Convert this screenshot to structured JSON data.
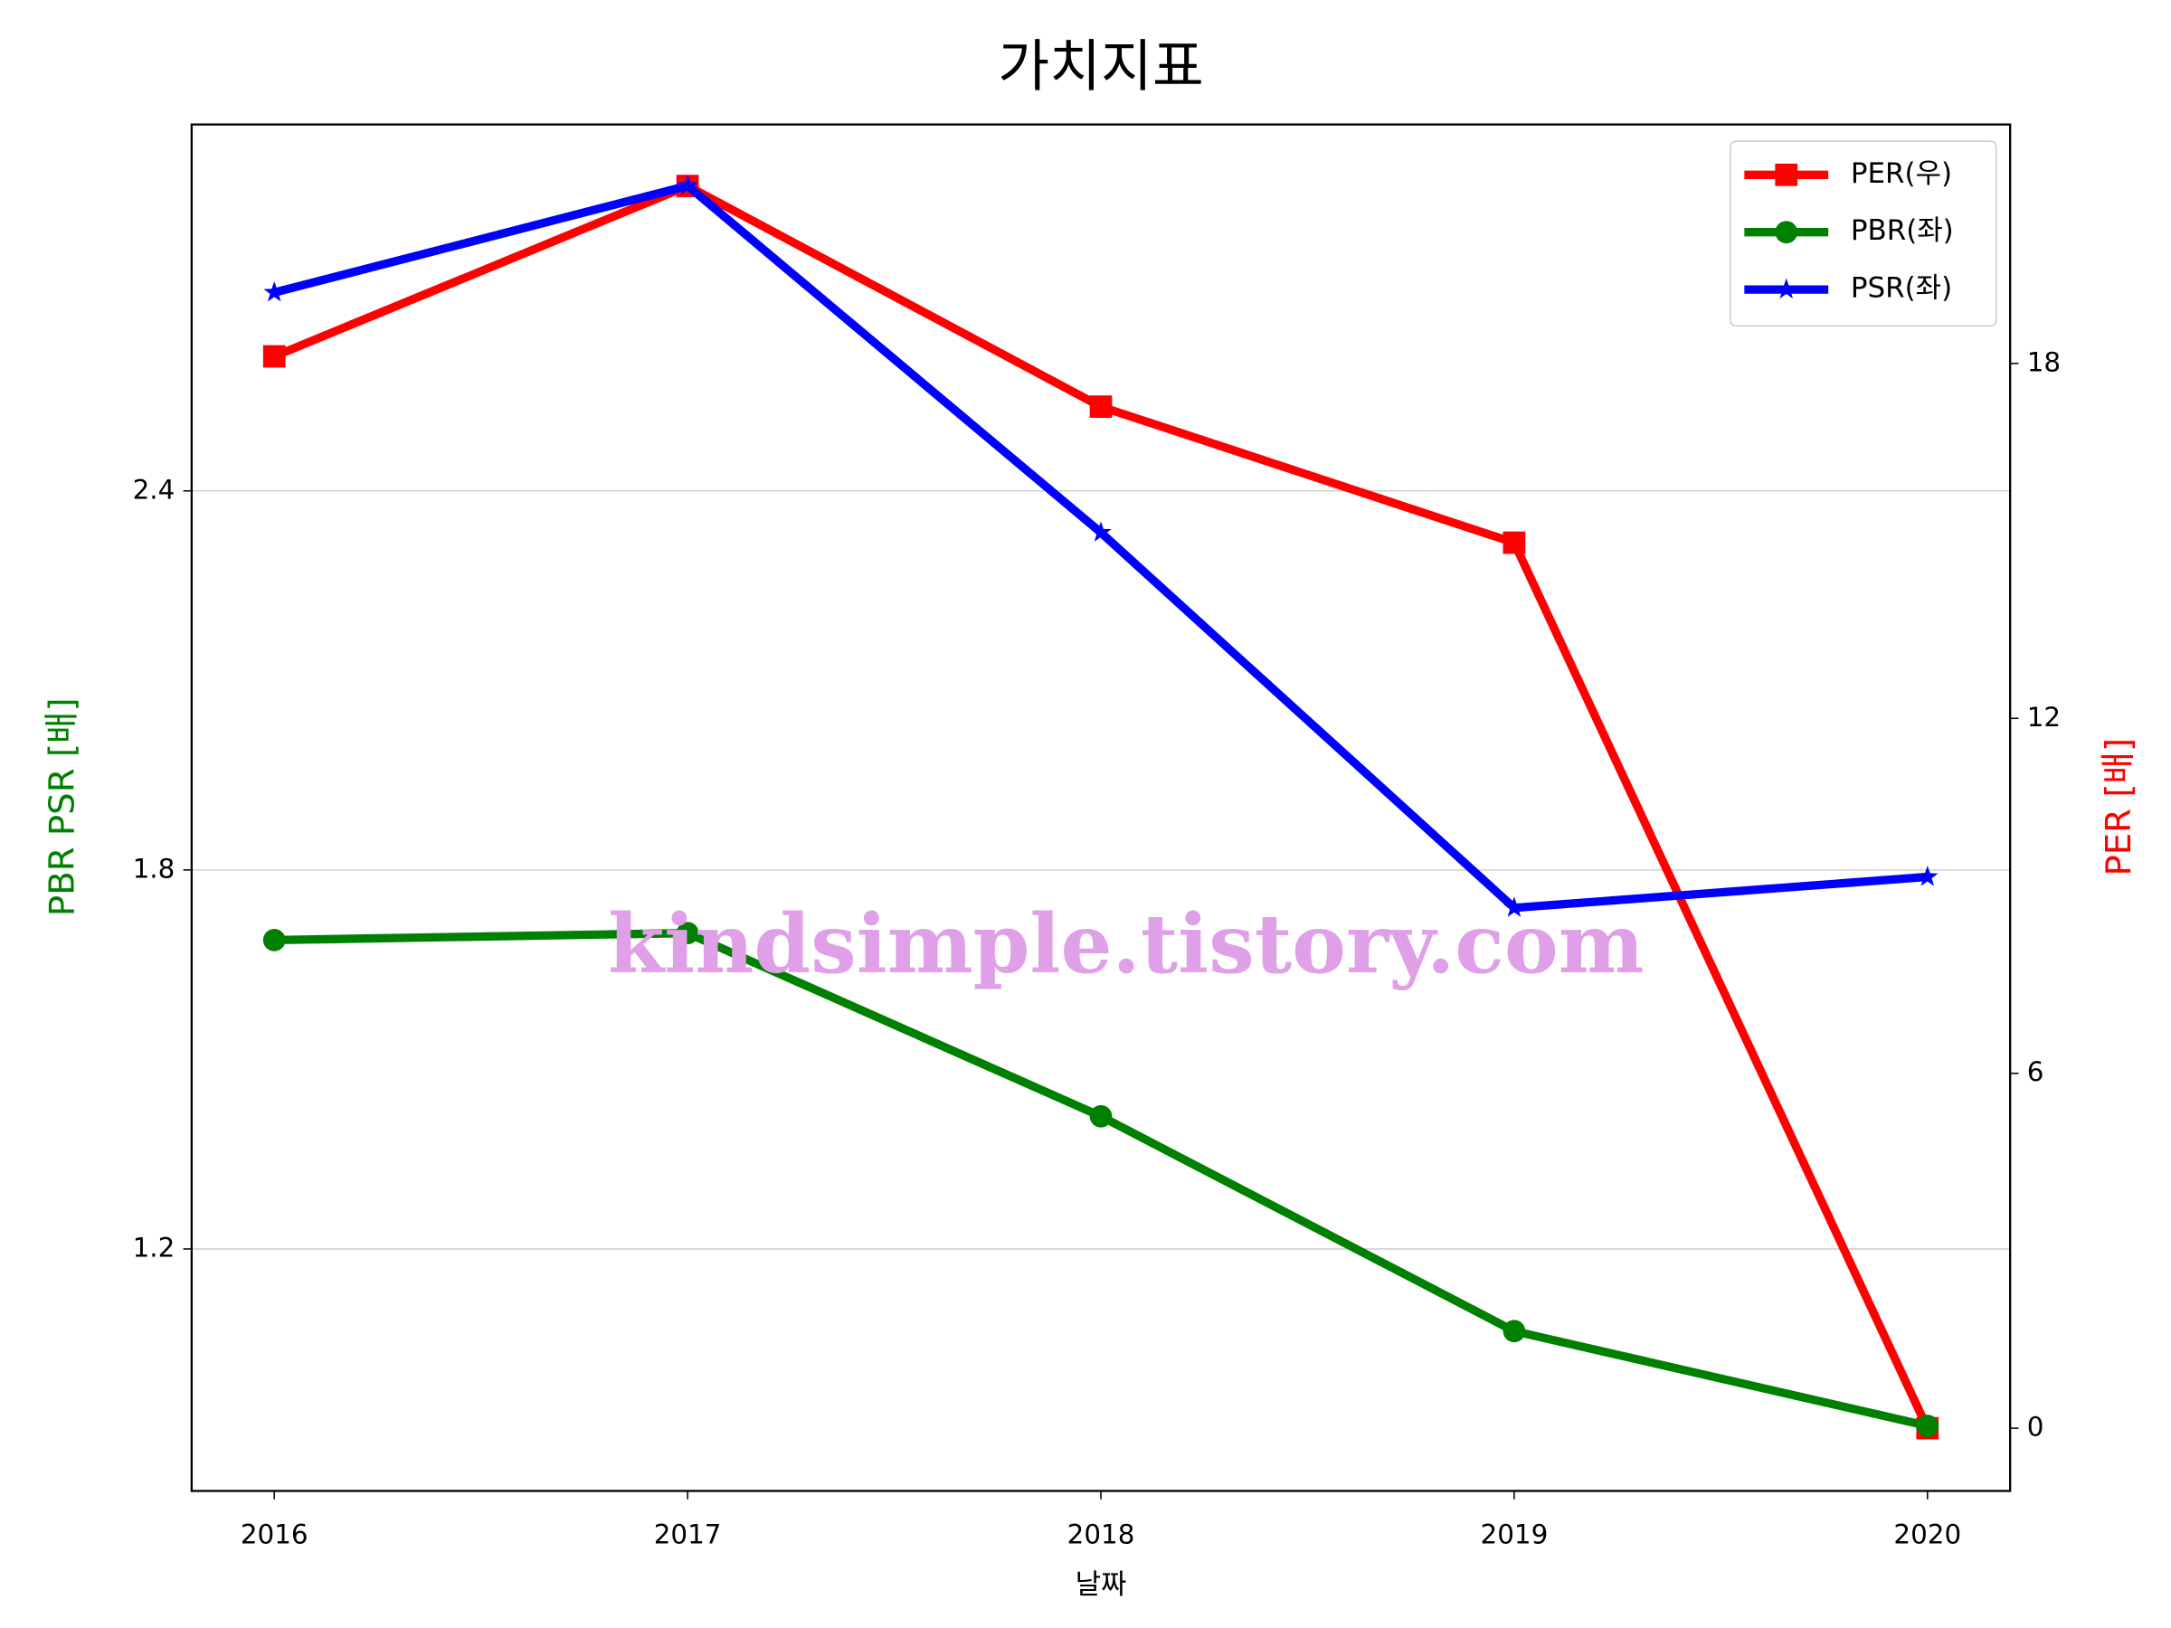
{
  "chart_data": {
    "type": "line",
    "title": "가치지표",
    "x_label": "날짜",
    "y_label": "PBR PSR [배]",
    "y2_label": "PER [배]",
    "annotation": "kindsimple.tistory.com",
    "x": [
      2016,
      2017,
      2018,
      2019,
      2020
    ],
    "xlim": [
      2015.8,
      2020.2
    ],
    "xticks": [
      2016,
      2017,
      2018,
      2019,
      2020
    ],
    "ylim": [
      0.817,
      2.98
    ],
    "yticks": [
      1.2,
      1.8,
      2.4
    ],
    "y2lim": [
      -1.06,
      22.04
    ],
    "y2ticks": [
      0,
      6,
      12,
      18
    ],
    "grid": true,
    "legend": "upper right",
    "series": [
      {
        "name": "PER(우)",
        "color": "#ff0000",
        "marker": "square",
        "axis": "y2",
        "values": [
          18.12,
          21.0,
          17.27,
          14.97,
          0
        ]
      },
      {
        "name": "PBR(좌)",
        "color": "#008000",
        "marker": "circle",
        "values": [
          1.689,
          1.7,
          1.41,
          1.07,
          0.92
        ]
      },
      {
        "name": "PSR(좌)",
        "color": "#0000ff",
        "marker": "star",
        "values": [
          2.714,
          2.883,
          2.334,
          1.74,
          1.789
        ]
      }
    ]
  }
}
